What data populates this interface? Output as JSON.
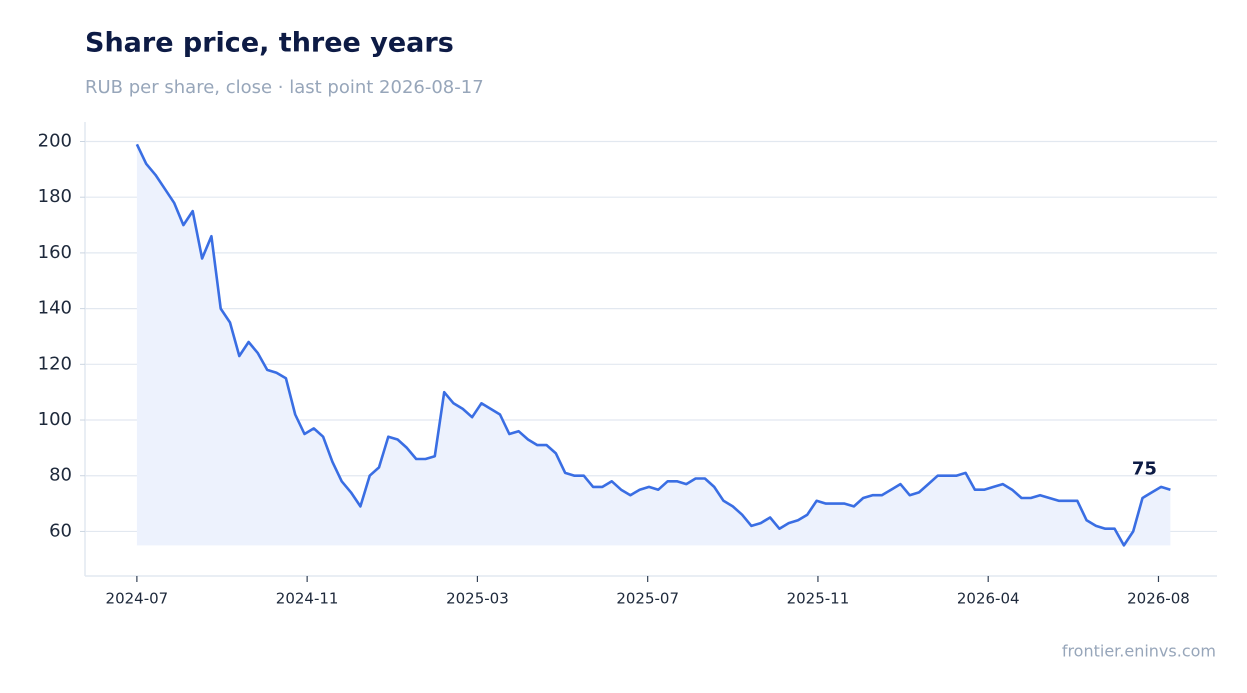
{
  "chart_data": {
    "type": "line",
    "title": "Share price, three years",
    "subtitle": "RUB per share, close · last point 2026-08-17",
    "source": "frontier.eninvs.com",
    "x": [
      "2024-07-01",
      "2024-07-08",
      "2024-07-15",
      "2024-07-22",
      "2024-07-29",
      "2024-08-05",
      "2024-08-12",
      "2024-08-19",
      "2024-08-26",
      "2024-09-02",
      "2024-09-09",
      "2024-09-16",
      "2024-09-23",
      "2024-09-30",
      "2024-10-07",
      "2024-10-14",
      "2024-10-21",
      "2024-10-28",
      "2024-11-04",
      "2024-11-11",
      "2024-11-18",
      "2024-11-25",
      "2024-12-02",
      "2024-12-09",
      "2024-12-16",
      "2024-12-23",
      "2024-12-30",
      "2025-01-06",
      "2025-01-13",
      "2025-01-20",
      "2025-01-27",
      "2025-02-03",
      "2025-02-10",
      "2025-02-17",
      "2025-02-24",
      "2025-03-03",
      "2025-03-10",
      "2025-03-17",
      "2025-03-24",
      "2025-03-31",
      "2025-04-07",
      "2025-04-14",
      "2025-04-21",
      "2025-04-28",
      "2025-05-05",
      "2025-05-12",
      "2025-05-19",
      "2025-05-26",
      "2025-06-02",
      "2025-06-09",
      "2025-06-16",
      "2025-06-23",
      "2025-06-30",
      "2025-07-07",
      "2025-07-14",
      "2025-07-21",
      "2025-07-28",
      "2025-08-04",
      "2025-08-11",
      "2025-08-18",
      "2025-08-25",
      "2025-09-01",
      "2025-09-08",
      "2025-09-15",
      "2025-09-22",
      "2025-09-29",
      "2025-10-06",
      "2025-10-13",
      "2025-10-20",
      "2025-10-27",
      "2025-11-03",
      "2025-11-10",
      "2025-11-17",
      "2025-11-24",
      "2025-12-01",
      "2025-12-08",
      "2025-12-15",
      "2025-12-22",
      "2025-12-29",
      "2026-01-05",
      "2026-01-12",
      "2026-01-19",
      "2026-01-26",
      "2026-02-02",
      "2026-02-09",
      "2026-02-16",
      "2026-02-23",
      "2026-03-02",
      "2026-03-09",
      "2026-03-16",
      "2026-03-23",
      "2026-03-30",
      "2026-04-06",
      "2026-04-13",
      "2026-04-20",
      "2026-04-27",
      "2026-05-04",
      "2026-05-11",
      "2026-05-18",
      "2026-05-25",
      "2026-06-01",
      "2026-06-08",
      "2026-06-15",
      "2026-06-22",
      "2026-06-29",
      "2026-07-06",
      "2026-07-13",
      "2026-07-20",
      "2026-07-27",
      "2026-08-03",
      "2026-08-10",
      "2026-08-17"
    ],
    "series": [
      {
        "name": "Close",
        "color": "#3a6ee3",
        "fill": "#edf2fd",
        "values": [
          199,
          192,
          188,
          183,
          178,
          170,
          175,
          158,
          166,
          140,
          135,
          123,
          128,
          124,
          118,
          117,
          115,
          102,
          95,
          97,
          94,
          85,
          78,
          74,
          69,
          80,
          83,
          94,
          93,
          90,
          86,
          86,
          87,
          110,
          106,
          104,
          101,
          106,
          104,
          102,
          95,
          96,
          93,
          91,
          91,
          88,
          81,
          80,
          80,
          76,
          76,
          78,
          75,
          73,
          75,
          76,
          75,
          78,
          78,
          77,
          79,
          79,
          76,
          71,
          69,
          66,
          62,
          63,
          65,
          61,
          63,
          64,
          66,
          71,
          70,
          70,
          70,
          69,
          72,
          73,
          73,
          75,
          77,
          73,
          74,
          77,
          80,
          80,
          80,
          81,
          75,
          75,
          76,
          77,
          75,
          72,
          72,
          73,
          72,
          71,
          71,
          71,
          64,
          62,
          61,
          61,
          55,
          60,
          72,
          74,
          76,
          75
        ]
      }
    ],
    "label_last": true,
    "xlim": [
      "2024-05-23",
      "2026-09-21"
    ],
    "xticks": [
      {
        "value": "2024-07-01",
        "label": "2024-07"
      },
      {
        "value": "2024-11-06",
        "label": "2024-11"
      },
      {
        "value": "2025-03-14",
        "label": "2025-03"
      },
      {
        "value": "2025-07-20",
        "label": "2025-07"
      },
      {
        "value": "2025-11-25",
        "label": "2025-11"
      },
      {
        "value": "2026-04-02",
        "label": "2026-04"
      },
      {
        "value": "2026-08-08",
        "label": "2026-08"
      }
    ],
    "ylim": [
      44,
      207
    ],
    "yticks": [
      60,
      80,
      100,
      120,
      140,
      160,
      180,
      200
    ],
    "grid": true
  }
}
